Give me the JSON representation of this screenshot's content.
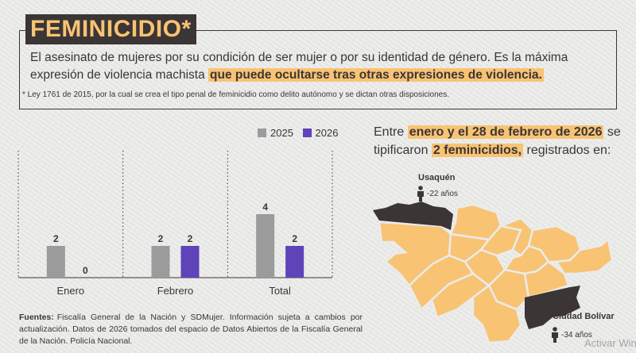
{
  "header": {
    "title": "FEMINICIDIO*",
    "definition_plain": "El asesinato de mujeres por su condición de ser mujer o por su identidad de género. Es la máxima expresión de violencia machista ",
    "definition_highlight": "que puede ocultarse tras otras expresiones de violencia.",
    "footnote": "* Ley 1761 de 2015, por la cual se crea el tipo penal de feminicidio como delito autónomo y se dictan otras disposiciones."
  },
  "colors": {
    "dark": "#3b3536",
    "accent": "#f8c373",
    "series_2025": "#9b9b9b",
    "series_2026": "#5f43b8"
  },
  "chart_data": {
    "type": "bar",
    "title": "",
    "xlabel": "",
    "ylabel": "",
    "categories": [
      "Enero",
      "Febrero",
      "Total"
    ],
    "series": [
      {
        "name": "2025",
        "values": [
          2,
          2,
          4
        ]
      },
      {
        "name": "2026",
        "values": [
          0,
          2,
          2
        ]
      }
    ],
    "ylim": [
      0,
      8
    ],
    "grid": "dotted vertical separators",
    "legend": "top-right",
    "data_labels": true
  },
  "sources": {
    "label": "Fuentes:",
    "text": "Fiscalía General de la Nación y SDMujer.  Información sujeta a cambios por actualización. Datos de 2026 tomados del espacio de Datos Abiertos de la Fiscalía General de la Nación. Policía Nacional."
  },
  "summary": {
    "part1": "Entre ",
    "hl1": "enero y el 28 de febrero de 2026",
    "part2": " se tipificaron ",
    "hl2": "2 feminicidios,",
    "part3": " registrados en:"
  },
  "map": {
    "locations": [
      {
        "name": "Usaquén",
        "age": "-22 años",
        "icon": "woman-figure-icon"
      },
      {
        "name": "Ciudad Bolívar",
        "age": "-34 años",
        "icon": "woman-figure-icon"
      }
    ]
  },
  "watermark": "Activar Wind"
}
